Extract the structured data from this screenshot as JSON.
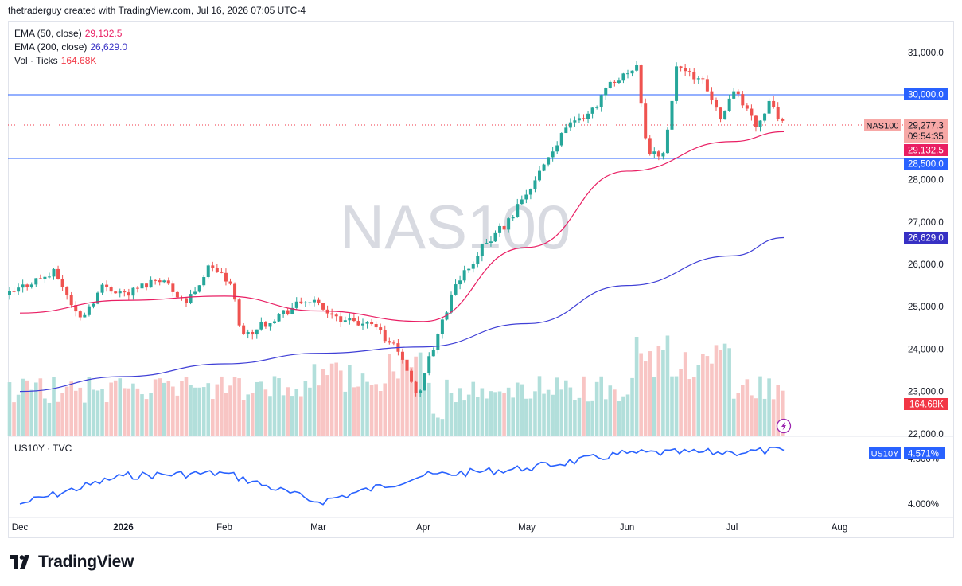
{
  "header": {
    "credit": "thetraderguy created with TradingView.com, Jul 16, 2026 07:05 UTC-4"
  },
  "watermark": "NAS100",
  "legend": {
    "ema50": {
      "label": "EMA (50, close)",
      "value": "29,132.5",
      "color": "#e91e63"
    },
    "ema200": {
      "label": "EMA (200, close)",
      "value": "26,629.0",
      "color": "#3730c4"
    },
    "vol": {
      "label": "Vol · Ticks",
      "value": "164.68K",
      "color": "#f23645"
    }
  },
  "indicator_pane": {
    "label": "US10Y · TVC",
    "symbol": "US10Y",
    "value": "4.571%",
    "tick_4500": "4.500%",
    "tick_4000": "4.000%"
  },
  "price_badges": {
    "symbol": "NAS100",
    "last": "29,277.3",
    "countdown": "09:54:35",
    "ema50": "29,132.5",
    "level_high": "30,000.0",
    "level_low": "28,500.0",
    "ema200": "26,629.0",
    "volume": "164.68K"
  },
  "footer": {
    "brand": "TradingView"
  },
  "colors": {
    "up": "#26a69a",
    "down": "#ef5350",
    "up_vol": "#b2dfdb",
    "down_vol": "#f8c5c4",
    "ema50": "#e91e63",
    "ema200": "#3f3fd6",
    "hline": "#2962ff",
    "us10y": "#2962ff"
  },
  "chart_data": {
    "type": "candlestick",
    "symbol": "NAS100",
    "ylim": [
      22000,
      31800
    ],
    "y_ticks": [
      "22,000.0",
      "23,000.0",
      "24,000.0",
      "25,000.0",
      "26,000.0",
      "27,000.0",
      "28,000.0",
      "29,000.0",
      "30,000.0",
      "31,000.0"
    ],
    "x_labels": [
      "Dec",
      "2026",
      "Feb",
      "Mar",
      "Apr",
      "May",
      "Jun",
      "Jul",
      "Aug"
    ],
    "horizontal_levels": [
      30000,
      28500
    ],
    "series": [
      {
        "name": "EMA (50, close)",
        "key_points": [
          [
            "Dec",
            24850
          ],
          [
            "2026",
            25150
          ],
          [
            "Feb",
            25250
          ],
          [
            "Mar",
            24900
          ],
          [
            "Apr",
            24650
          ],
          [
            "May",
            26400
          ],
          [
            "Jun",
            28200
          ],
          [
            "Jul",
            28900
          ],
          [
            "Jul 16",
            29132.5
          ]
        ]
      },
      {
        "name": "EMA (200, close)",
        "key_points": [
          [
            "Dec",
            23000
          ],
          [
            "2026",
            23350
          ],
          [
            "Feb",
            23650
          ],
          [
            "Mar",
            23900
          ],
          [
            "Apr",
            24050
          ],
          [
            "May",
            24600
          ],
          [
            "Jun",
            25500
          ],
          [
            "Jul",
            26200
          ],
          [
            "Jul 16",
            26629
          ]
        ]
      },
      {
        "name": "US10Y",
        "key_points": [
          [
            "Dec",
            4.0
          ],
          [
            "2026",
            4.3
          ],
          [
            "Feb",
            4.33
          ],
          [
            "Mar",
            4.02
          ],
          [
            "Apr",
            4.3
          ],
          [
            "May",
            4.38
          ],
          [
            "Jun",
            4.54
          ],
          [
            "Jul",
            4.55
          ],
          [
            "Jul 16",
            4.571
          ]
        ]
      }
    ],
    "last_close": 29277.3,
    "last_volume": "164.68K"
  }
}
